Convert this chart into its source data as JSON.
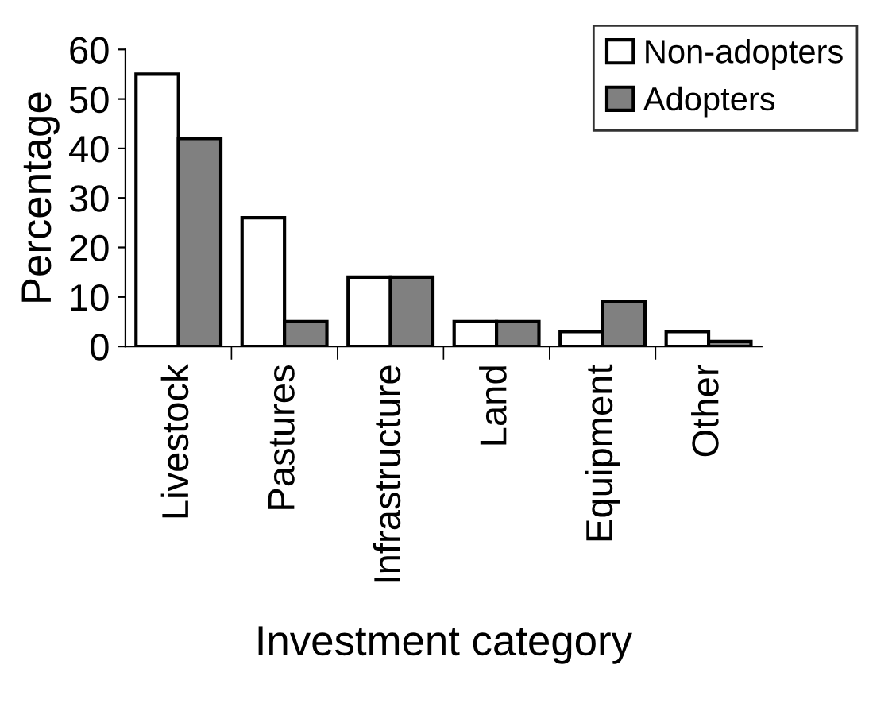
{
  "chart_data": {
    "type": "bar",
    "xlabel": "Investment category",
    "ylabel": "Percentage",
    "categories": [
      "Livestock",
      "Pastures",
      "Infrastructure",
      "Land",
      "Equipment",
      "Other"
    ],
    "series": [
      {
        "name": "Non-adopters",
        "color": "#ffffff",
        "values": [
          55,
          26,
          14,
          5,
          3,
          3
        ]
      },
      {
        "name": "Adopters",
        "color": "#808080",
        "values": [
          42,
          5,
          14,
          5,
          9,
          1
        ]
      }
    ],
    "ylim": [
      0,
      60
    ],
    "yticks": [
      0,
      10,
      20,
      30,
      40,
      50,
      60
    ],
    "grid": false,
    "legend": "top right"
  }
}
